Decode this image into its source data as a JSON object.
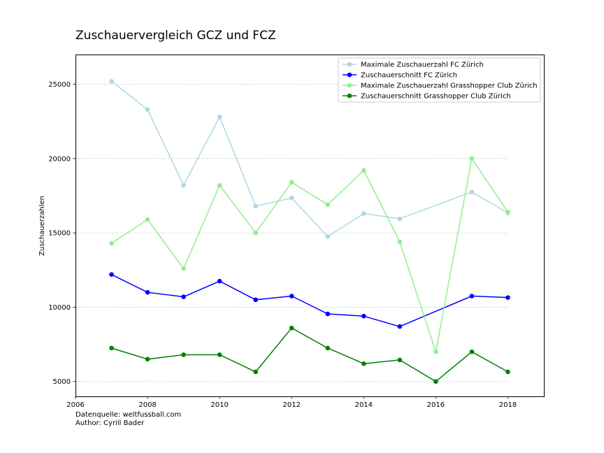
{
  "chart_data": {
    "type": "line",
    "title": "Zuschauervergleich GCZ und FCZ",
    "xlabel": "",
    "ylabel": "Zuschauerzahlen",
    "xlim": [
      2006,
      2019
    ],
    "ylim": [
      4000,
      27000
    ],
    "xticks": [
      2006,
      2008,
      2010,
      2012,
      2014,
      2016,
      2018
    ],
    "yticks": [
      5000,
      10000,
      15000,
      20000,
      25000
    ],
    "grid": "horizontal dashed",
    "legend_position": "top-right",
    "series": [
      {
        "name": "Maximale Zuschauerzahl FC Zürich",
        "color": "#add8e6",
        "x": [
          2007,
          2008,
          2009,
          2010,
          2011,
          2012,
          2013,
          2014,
          2015,
          2017,
          2018
        ],
        "values": [
          25200,
          23300,
          18200,
          22800,
          16800,
          17350,
          14750,
          16300,
          15950,
          17750,
          16350
        ]
      },
      {
        "name": "Zuschauerschnitt FC Zürich",
        "color": "#0000ff",
        "x": [
          2007,
          2008,
          2009,
          2010,
          2011,
          2012,
          2013,
          2014,
          2015,
          2017,
          2018
        ],
        "values": [
          12200,
          11000,
          10700,
          11750,
          10500,
          10750,
          9550,
          9400,
          8700,
          10750,
          10650
        ]
      },
      {
        "name": "Maximale Zuschauerzahl Grasshopper Club Zürich",
        "color": "#90ee90",
        "x": [
          2007,
          2008,
          2009,
          2010,
          2011,
          2012,
          2013,
          2014,
          2015,
          2016,
          2017,
          2018
        ],
        "values": [
          14300,
          15900,
          12600,
          18200,
          15000,
          18400,
          16900,
          19200,
          14400,
          7000,
          20000,
          16400
        ]
      },
      {
        "name": "Zuschauerschnitt Grasshopper Club Zürich",
        "color": "#008000",
        "x": [
          2007,
          2008,
          2009,
          2010,
          2011,
          2012,
          2013,
          2014,
          2015,
          2016,
          2017,
          2018
        ],
        "values": [
          7250,
          6500,
          6800,
          6800,
          5650,
          8600,
          7250,
          6200,
          6450,
          5000,
          7000,
          5650
        ]
      }
    ]
  },
  "footer": {
    "source": "Datenquelle: weltfussball.com",
    "author": "Author: Cyrill Bader"
  }
}
